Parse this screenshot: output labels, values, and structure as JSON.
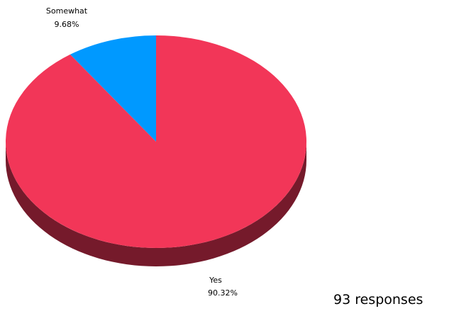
{
  "chart_data": {
    "type": "pie",
    "style": "3d",
    "slices": [
      {
        "label": "Yes",
        "percent_label": "90.32%",
        "value": 90.32,
        "color": "#f23658",
        "side_color": "#751a2b"
      },
      {
        "label": "Somewhat",
        "percent_label": "9.68%",
        "value": 9.68,
        "color": "#0099ff",
        "side_color": "#004a80"
      }
    ]
  },
  "footer": {
    "responses_text": "93 responses"
  }
}
